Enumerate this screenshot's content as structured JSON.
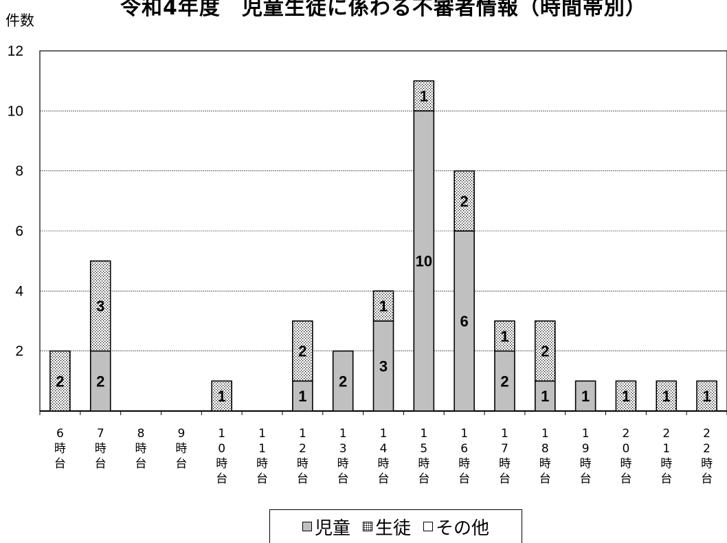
{
  "chart_data": {
    "type": "bar",
    "stacked": true,
    "title": "令和4年度　児童生徒に係わる不審者情報（時間帯別）",
    "ylabel": "件数",
    "xlabel": "",
    "ylim": [
      0,
      12
    ],
    "yticks": [
      2,
      4,
      6,
      8,
      10,
      12
    ],
    "grid": true,
    "legend_position": "bottom",
    "categories": [
      "6時台",
      "7時台",
      "8時台",
      "9時台",
      "10時台",
      "11時台",
      "12時台",
      "13時台",
      "14時台",
      "15時台",
      "16時台",
      "17時台",
      "18時台",
      "19時台",
      "20時台",
      "21時台",
      "22時台"
    ],
    "series": [
      {
        "name": "児童",
        "color": "#c0c0c0",
        "pattern": "solid",
        "values": [
          0,
          2,
          0,
          0,
          0,
          0,
          1,
          2,
          3,
          10,
          6,
          2,
          1,
          1,
          0,
          0,
          0
        ]
      },
      {
        "name": "生徒",
        "color": "#ffffff",
        "pattern": "dots",
        "values": [
          2,
          3,
          0,
          0,
          1,
          0,
          2,
          0,
          1,
          1,
          2,
          1,
          2,
          0,
          1,
          1,
          1
        ]
      },
      {
        "name": "その他",
        "color": "#ffffff",
        "pattern": "none",
        "values": [
          0,
          0,
          0,
          0,
          0,
          0,
          0,
          0,
          0,
          0,
          0,
          0,
          0,
          0,
          0,
          0,
          0
        ]
      }
    ]
  }
}
